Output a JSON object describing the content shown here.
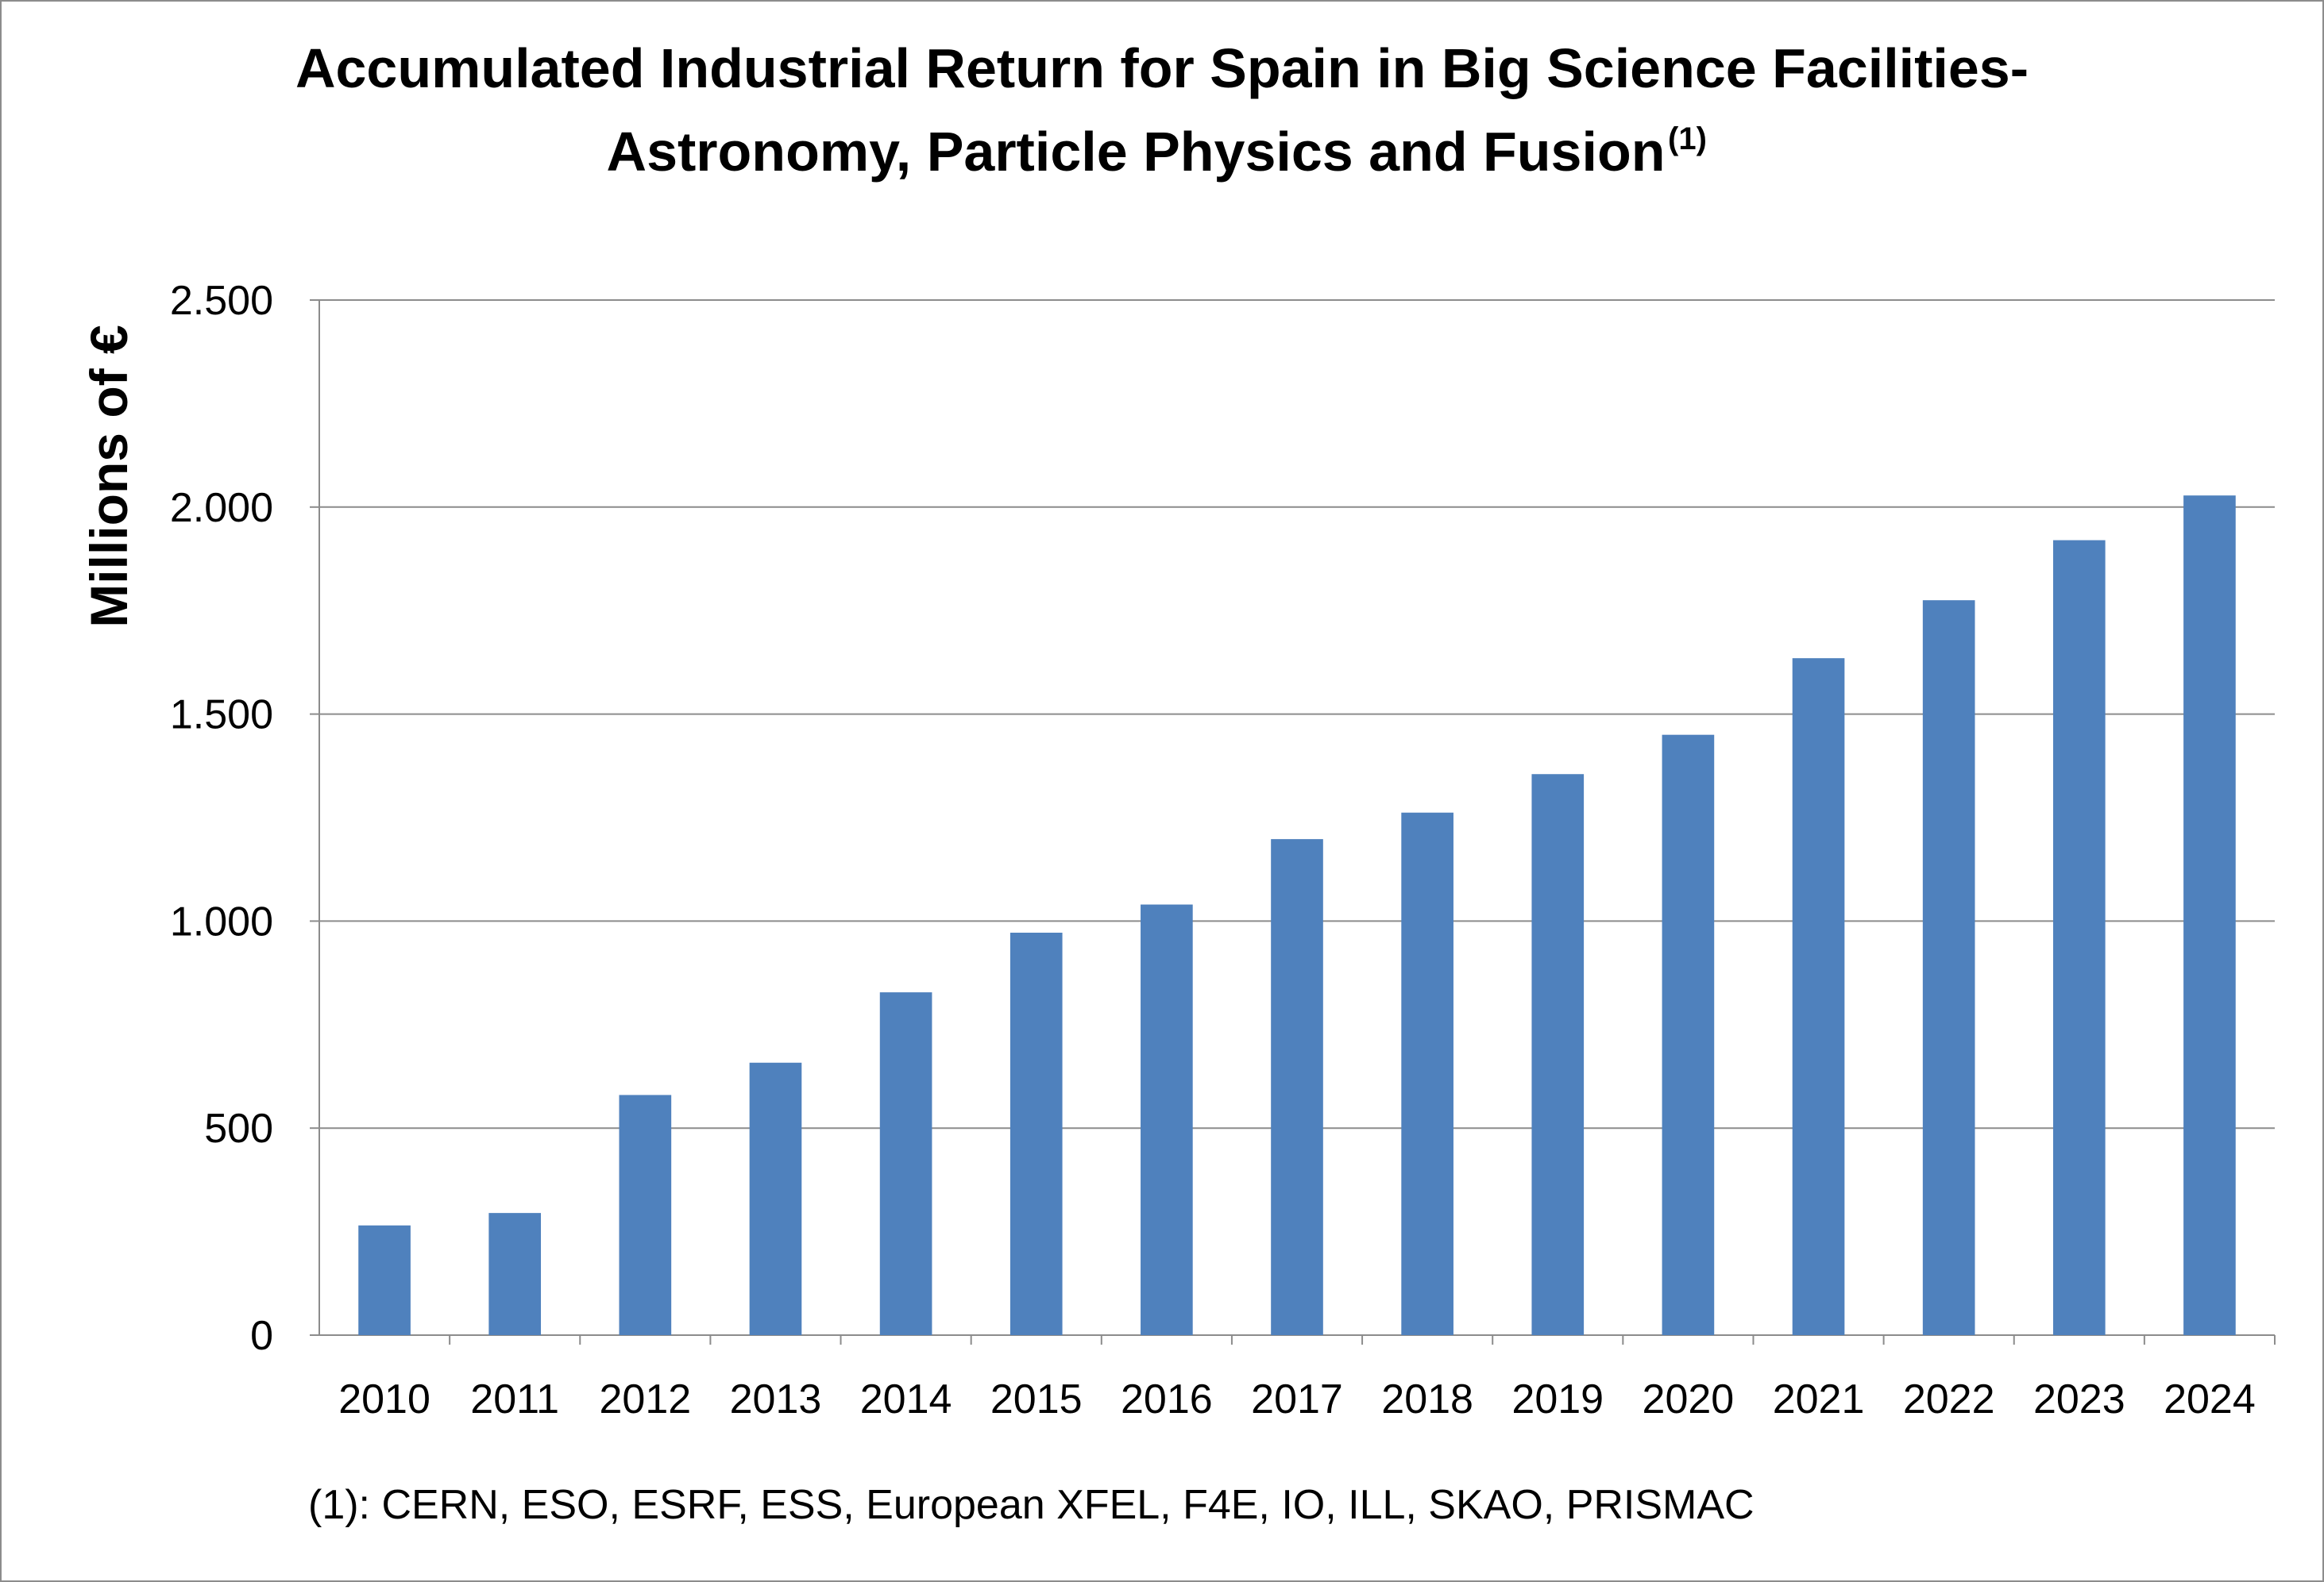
{
  "chart_data": {
    "type": "bar",
    "title_line1": "Accumulated Industrial Return for Spain in Big Science Facilities-",
    "title_line2": "Astronomy, Particle Physics and Fusion",
    "title_superscript": "(1)",
    "ylabel": "Millions of €",
    "xlabel": "",
    "ylim": [
      0,
      2500
    ],
    "yticks": [
      0,
      500,
      1000,
      1500,
      2000,
      2500
    ],
    "ytick_labels": [
      "0",
      "500",
      "1.000",
      "1.500",
      "2.000",
      "2.500"
    ],
    "grid": true,
    "legend": "none",
    "bar_color": "#4f81bd",
    "categories": [
      "2010",
      "2011",
      "2012",
      "2013",
      "2014",
      "2015",
      "2016",
      "2017",
      "2018",
      "2019",
      "2020",
      "2021",
      "2022",
      "2023",
      "2024"
    ],
    "values": [
      265,
      295,
      580,
      658,
      828,
      972,
      1040,
      1198,
      1262,
      1355,
      1450,
      1635,
      1775,
      1920,
      2028
    ],
    "footnote": "(1): CERN, ESO, ESRF, ESS, European XFEL, F4E, IO, ILL,  SKAO, PRISMAC"
  }
}
